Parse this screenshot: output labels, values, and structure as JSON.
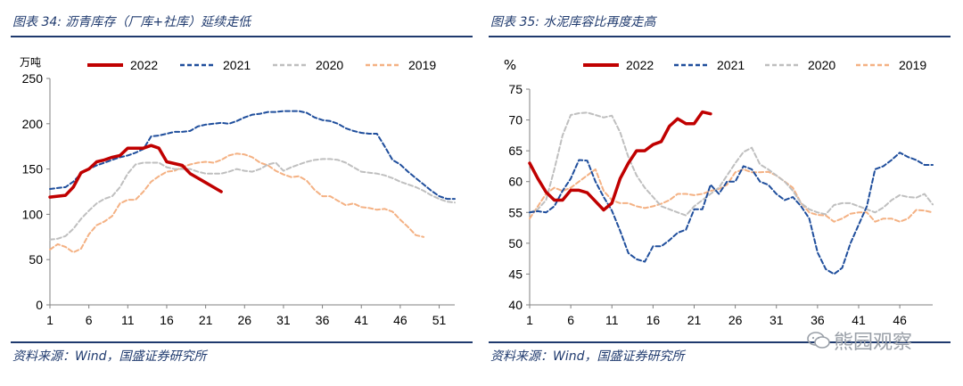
{
  "left": {
    "title": "图表 34:  沥青库存（厂库+社库）延续走低",
    "source": "资料来源：Wind，国盛证券研究所",
    "chart_data": {
      "type": "line",
      "unit_label": "万吨",
      "ylim": [
        0,
        250
      ],
      "yticks": [
        0,
        50,
        100,
        150,
        200,
        250
      ],
      "xlim": [
        1,
        53
      ],
      "xticks": [
        1,
        6,
        11,
        16,
        21,
        26,
        31,
        36,
        41,
        46,
        51
      ],
      "series": [
        {
          "name": "2022",
          "color": "#c00000",
          "dash": "solid",
          "width": 3.5,
          "x": [
            1,
            2,
            3,
            4,
            5,
            6,
            7,
            8,
            9,
            10,
            11,
            12,
            13,
            14,
            15,
            16,
            17,
            18,
            19,
            20,
            21,
            22,
            23
          ],
          "values": [
            119,
            120,
            121,
            130,
            146,
            150,
            158,
            160,
            163,
            165,
            173,
            173,
            173,
            176,
            173,
            158,
            156,
            154,
            145,
            140,
            135,
            130,
            125
          ]
        },
        {
          "name": "2021",
          "color": "#1f4e9c",
          "dash": "dashed",
          "width": 2,
          "x": [
            1,
            2,
            3,
            4,
            5,
            6,
            7,
            8,
            9,
            10,
            11,
            12,
            13,
            14,
            15,
            16,
            17,
            18,
            19,
            20,
            21,
            22,
            23,
            24,
            25,
            26,
            27,
            28,
            29,
            30,
            31,
            32,
            33,
            34,
            35,
            36,
            37,
            38,
            39,
            40,
            41,
            42,
            43,
            44,
            45,
            46,
            47,
            48,
            49,
            50,
            51,
            52,
            53
          ],
          "values": [
            128,
            129,
            130,
            136,
            145,
            150,
            154,
            157,
            160,
            163,
            165,
            168,
            172,
            186,
            187,
            189,
            191,
            191,
            192,
            197,
            199,
            200,
            201,
            200,
            203,
            207,
            210,
            211,
            213,
            213,
            214,
            214,
            214,
            212,
            207,
            204,
            203,
            200,
            195,
            192,
            190,
            189,
            189,
            175,
            160,
            155,
            147,
            140,
            133,
            126,
            120,
            117,
            117
          ]
        },
        {
          "name": "2020",
          "color": "#bfbfbf",
          "dash": "dashed",
          "width": 2,
          "x": [
            1,
            2,
            3,
            4,
            5,
            6,
            7,
            8,
            9,
            10,
            11,
            12,
            13,
            14,
            15,
            16,
            17,
            18,
            19,
            20,
            21,
            22,
            23,
            24,
            25,
            26,
            27,
            28,
            29,
            30,
            31,
            32,
            33,
            34,
            35,
            36,
            37,
            38,
            39,
            40,
            41,
            42,
            43,
            44,
            45,
            46,
            47,
            48,
            49,
            50,
            51,
            52,
            53
          ],
          "values": [
            72,
            73,
            76,
            84,
            95,
            104,
            112,
            117,
            120,
            130,
            145,
            155,
            157,
            157,
            157,
            152,
            150,
            150,
            150,
            147,
            145,
            145,
            145,
            147,
            150,
            148,
            147,
            150,
            155,
            157,
            148,
            152,
            155,
            158,
            160,
            161,
            161,
            160,
            157,
            152,
            147,
            146,
            145,
            143,
            140,
            136,
            133,
            130,
            126,
            121,
            117,
            114,
            113
          ]
        },
        {
          "name": "2019",
          "color": "#f4b183",
          "dash": "dashed",
          "width": 2,
          "x": [
            1,
            2,
            3,
            4,
            5,
            6,
            7,
            8,
            9,
            10,
            11,
            12,
            13,
            14,
            15,
            16,
            17,
            18,
            19,
            20,
            21,
            22,
            23,
            24,
            25,
            26,
            27,
            28,
            29,
            30,
            31,
            32,
            33,
            34,
            35,
            36,
            37,
            38,
            39,
            40,
            41,
            42,
            43,
            44,
            45,
            46,
            47,
            48,
            49
          ],
          "values": [
            61,
            67,
            64,
            58,
            62,
            78,
            88,
            92,
            98,
            112,
            116,
            116,
            125,
            136,
            142,
            147,
            148,
            152,
            155,
            157,
            158,
            157,
            160,
            165,
            167,
            166,
            163,
            157,
            154,
            148,
            144,
            141,
            142,
            137,
            127,
            120,
            120,
            115,
            110,
            112,
            108,
            107,
            105,
            106,
            103,
            94,
            86,
            77,
            75
          ]
        }
      ]
    }
  },
  "right": {
    "title": "图表 35:  水泥库容比再度走高",
    "source": "资料来源：Wind，国盛证券研究所",
    "chart_data": {
      "type": "line",
      "unit_label": "%",
      "ylim": [
        40,
        75
      ],
      "yticks": [
        40,
        45,
        50,
        55,
        60,
        65,
        70,
        75
      ],
      "xlim": [
        1,
        50
      ],
      "xticks": [
        1,
        6,
        11,
        16,
        21,
        26,
        31,
        36,
        41,
        46
      ],
      "series": [
        {
          "name": "2022",
          "color": "#c00000",
          "dash": "solid",
          "width": 3.5,
          "x": [
            1,
            2,
            3,
            4,
            5,
            6,
            7,
            8,
            9,
            10,
            11,
            12,
            13,
            14,
            15,
            16,
            17,
            18,
            19,
            20,
            21,
            22,
            23
          ],
          "values": [
            63,
            60.5,
            58.3,
            57,
            57,
            58.6,
            58.6,
            58.2,
            56.8,
            55.4,
            56.5,
            60.5,
            63,
            65,
            65,
            66,
            66.5,
            69,
            70.2,
            69.4,
            69.4,
            71.3,
            71
          ]
        },
        {
          "name": "2021",
          "color": "#1f4e9c",
          "dash": "dashed",
          "width": 2,
          "x": [
            1,
            2,
            3,
            4,
            5,
            6,
            7,
            8,
            9,
            10,
            11,
            12,
            13,
            14,
            15,
            16,
            17,
            18,
            19,
            20,
            21,
            22,
            23,
            24,
            25,
            26,
            27,
            28,
            29,
            30,
            31,
            32,
            33,
            34,
            35,
            36,
            37,
            38,
            39,
            40,
            41,
            42,
            43,
            44,
            45,
            46,
            47,
            48,
            49,
            50
          ],
          "values": [
            55,
            55.2,
            55,
            56,
            58.5,
            60.5,
            63.5,
            63.4,
            60,
            57.5,
            55.3,
            52,
            48.4,
            47.4,
            47,
            49.5,
            49.5,
            50.5,
            51.7,
            52.2,
            55.5,
            55.5,
            59.5,
            58,
            60,
            60,
            62.5,
            62,
            60,
            59.5,
            58,
            57,
            57.5,
            56,
            54,
            48.5,
            45.8,
            45,
            46,
            50,
            53,
            56,
            62,
            62.5,
            63.5,
            64.7,
            64,
            63.5,
            62.7,
            62.7
          ]
        },
        {
          "name": "2020",
          "color": "#bfbfbf",
          "dash": "dashed",
          "width": 2,
          "x": [
            1,
            2,
            3,
            4,
            5,
            6,
            7,
            8,
            9,
            10,
            11,
            12,
            13,
            14,
            15,
            16,
            17,
            18,
            19,
            20,
            21,
            22,
            23,
            24,
            25,
            26,
            27,
            28,
            29,
            30,
            31,
            32,
            33,
            34,
            35,
            36,
            37,
            38,
            39,
            40,
            41,
            42,
            43,
            44,
            45,
            46,
            47,
            48,
            49,
            50
          ],
          "values": [
            55,
            55.5,
            57,
            62,
            67.5,
            70.8,
            71.1,
            71.2,
            70.8,
            70.4,
            70.7,
            68,
            64,
            61,
            59,
            57.5,
            56,
            55.5,
            55,
            54.5,
            56,
            57,
            58,
            59,
            61,
            63,
            64.8,
            65.5,
            62.8,
            62,
            61,
            60,
            58.5,
            56.5,
            55.5,
            55,
            54.7,
            56.2,
            56.5,
            56.5,
            56,
            55.5,
            55,
            55.8,
            57,
            57.8,
            57.5,
            57.4,
            58,
            56.3
          ]
        },
        {
          "name": "2019",
          "color": "#f4b183",
          "dash": "dashed",
          "width": 2,
          "x": [
            1,
            2,
            3,
            4,
            5,
            6,
            7,
            8,
            9,
            10,
            11,
            12,
            13,
            14,
            15,
            16,
            17,
            18,
            19,
            20,
            21,
            22,
            23,
            24,
            25,
            26,
            27,
            28,
            29,
            30,
            31,
            32,
            33,
            34,
            35,
            36,
            37,
            38,
            39,
            40,
            41,
            42,
            43,
            44,
            45,
            46,
            47,
            48,
            49,
            50
          ],
          "values": [
            54,
            56,
            58,
            59,
            58.5,
            59,
            60,
            61,
            62,
            58.5,
            57,
            56.5,
            56.5,
            56,
            55.7,
            56,
            56.4,
            57,
            58,
            58,
            57.8,
            58,
            58.5,
            58.8,
            59.5,
            61.5,
            62,
            61.5,
            61.5,
            61.6,
            61,
            60,
            59,
            56.5,
            55,
            54.6,
            54.5,
            53.5,
            54,
            54.8,
            55,
            55,
            53.5,
            54,
            54,
            53.5,
            54,
            55.4,
            55.3,
            55
          ]
        }
      ]
    }
  },
  "watermark": {
    "text": "熊园观察"
  }
}
